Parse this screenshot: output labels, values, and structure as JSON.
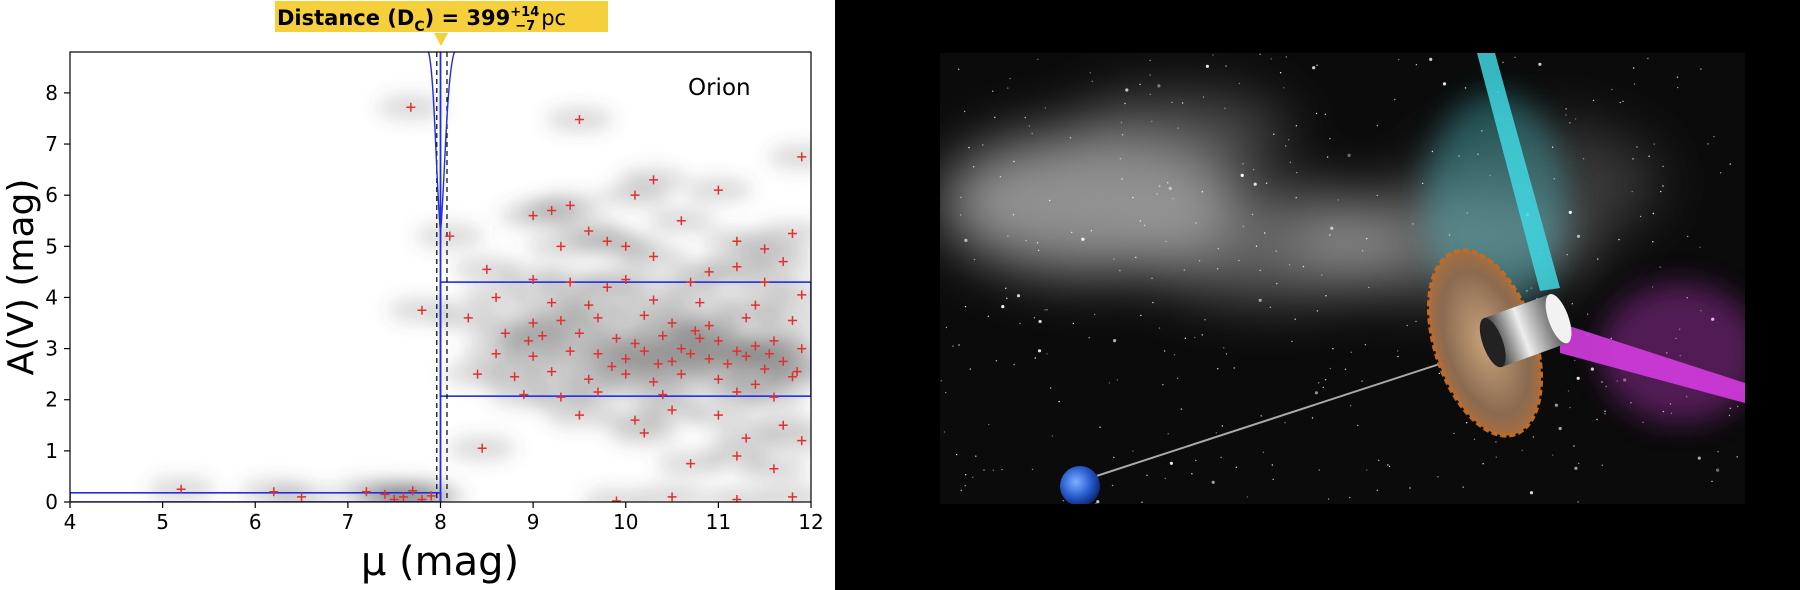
{
  "chart_data": {
    "type": "scatter",
    "title_prefix": "Distance (D",
    "title_subscript": "C",
    "title_value": ") = 399",
    "title_sup": "+14",
    "title_sub": "−7",
    "title_unit": "pc",
    "annotation": "Orion",
    "xlabel": "μ (mag)",
    "ylabel": "A(V) (mag)",
    "xlim": [
      4,
      12
    ],
    "ylim": [
      0,
      8.8
    ],
    "xticks": [
      "4",
      "5",
      "6",
      "7",
      "8",
      "9",
      "10",
      "11",
      "12"
    ],
    "yticks": [
      "0",
      "1",
      "2",
      "3",
      "4",
      "5",
      "6",
      "7",
      "8"
    ],
    "distance_modulus": 8.0,
    "distance_lower": 7.96,
    "distance_upper": 8.07,
    "box_upper": {
      "x": [
        8.0,
        12
      ],
      "y": [
        2.07,
        4.3
      ]
    },
    "box_lower": {
      "x": [
        4,
        8.0
      ],
      "y": [
        0,
        0.18
      ]
    },
    "points": [
      [
        5.2,
        0.25
      ],
      [
        6.2,
        0.2
      ],
      [
        6.5,
        0.1
      ],
      [
        7.2,
        0.2
      ],
      [
        7.4,
        0.15
      ],
      [
        7.5,
        0.05
      ],
      [
        7.6,
        0.1
      ],
      [
        7.7,
        0.22
      ],
      [
        7.8,
        0.05
      ],
      [
        7.9,
        0.12
      ],
      [
        7.68,
        7.72
      ],
      [
        9.5,
        7.48
      ],
      [
        11.9,
        6.75
      ],
      [
        10.3,
        6.3
      ],
      [
        11.0,
        6.1
      ],
      [
        10.1,
        6.0
      ],
      [
        9.2,
        5.7
      ],
      [
        9.0,
        5.6
      ],
      [
        9.4,
        5.8
      ],
      [
        10.6,
        5.5
      ],
      [
        9.6,
        5.3
      ],
      [
        9.8,
        5.1
      ],
      [
        10.0,
        5.0
      ],
      [
        11.2,
        5.1
      ],
      [
        11.5,
        4.95
      ],
      [
        11.8,
        5.25
      ],
      [
        8.1,
        5.2
      ],
      [
        9.3,
        5.0
      ],
      [
        10.3,
        4.8
      ],
      [
        11.7,
        4.7
      ],
      [
        10.9,
        4.5
      ],
      [
        11.2,
        4.6
      ],
      [
        9.0,
        4.35
      ],
      [
        9.4,
        4.3
      ],
      [
        9.8,
        4.2
      ],
      [
        10.0,
        4.35
      ],
      [
        10.7,
        4.3
      ],
      [
        11.5,
        4.3
      ],
      [
        8.5,
        4.55
      ],
      [
        11.9,
        4.05
      ],
      [
        8.6,
        4.0
      ],
      [
        9.2,
        3.9
      ],
      [
        9.6,
        3.85
      ],
      [
        10.3,
        3.95
      ],
      [
        10.8,
        3.9
      ],
      [
        11.4,
        3.85
      ],
      [
        7.8,
        3.75
      ],
      [
        8.3,
        3.6
      ],
      [
        9.0,
        3.5
      ],
      [
        9.3,
        3.55
      ],
      [
        9.7,
        3.6
      ],
      [
        10.2,
        3.65
      ],
      [
        10.5,
        3.5
      ],
      [
        10.9,
        3.45
      ],
      [
        11.3,
        3.6
      ],
      [
        11.8,
        3.55
      ],
      [
        8.7,
        3.3
      ],
      [
        9.1,
        3.25
      ],
      [
        9.5,
        3.3
      ],
      [
        9.9,
        3.2
      ],
      [
        10.1,
        3.1
      ],
      [
        10.4,
        3.25
      ],
      [
        10.6,
        3.0
      ],
      [
        10.8,
        3.2
      ],
      [
        11.0,
        3.15
      ],
      [
        11.2,
        2.95
      ],
      [
        11.4,
        3.05
      ],
      [
        11.6,
        3.15
      ],
      [
        11.9,
        3.0
      ],
      [
        8.6,
        2.9
      ],
      [
        9.0,
        2.85
      ],
      [
        9.4,
        2.95
      ],
      [
        9.7,
        2.9
      ],
      [
        10.0,
        2.8
      ],
      [
        10.2,
        2.95
      ],
      [
        10.5,
        2.75
      ],
      [
        10.7,
        2.9
      ],
      [
        10.9,
        2.8
      ],
      [
        11.1,
        2.7
      ],
      [
        11.3,
        2.85
      ],
      [
        11.5,
        2.6
      ],
      [
        11.7,
        2.75
      ],
      [
        11.85,
        2.55
      ],
      [
        8.4,
        2.5
      ],
      [
        8.8,
        2.45
      ],
      [
        9.2,
        2.55
      ],
      [
        9.6,
        2.4
      ],
      [
        10.0,
        2.5
      ],
      [
        10.3,
        2.35
      ],
      [
        10.6,
        2.5
      ],
      [
        11.0,
        2.4
      ],
      [
        11.4,
        2.3
      ],
      [
        11.8,
        2.45
      ],
      [
        8.9,
        2.1
      ],
      [
        9.3,
        2.05
      ],
      [
        9.7,
        2.15
      ],
      [
        10.4,
        2.1
      ],
      [
        11.2,
        2.15
      ],
      [
        11.6,
        2.05
      ],
      [
        9.5,
        1.7
      ],
      [
        10.1,
        1.6
      ],
      [
        10.5,
        1.8
      ],
      [
        11.0,
        1.7
      ],
      [
        11.7,
        1.5
      ],
      [
        10.2,
        1.35
      ],
      [
        11.3,
        1.25
      ],
      [
        8.45,
        1.05
      ],
      [
        11.9,
        1.2
      ],
      [
        10.7,
        0.75
      ],
      [
        11.2,
        0.9
      ],
      [
        11.6,
        0.65
      ],
      [
        10.5,
        0.1
      ],
      [
        11.2,
        0.05
      ],
      [
        11.8,
        0.1
      ],
      [
        9.9,
        0.02
      ],
      [
        8.95,
        3.15
      ],
      [
        9.85,
        2.65
      ],
      [
        10.75,
        3.35
      ],
      [
        11.55,
        2.9
      ],
      [
        10.35,
        2.7
      ]
    ],
    "colors": {
      "points": "#e03030",
      "lines": "#1f2ee0",
      "title_bg": "#f5cf3c",
      "density": "#555555"
    }
  },
  "illustration": {
    "name": "Gaia spacecraft with Milky Way and Earth",
    "beam_colors": [
      "#3fd6e0",
      "#d43ce0"
    ]
  }
}
